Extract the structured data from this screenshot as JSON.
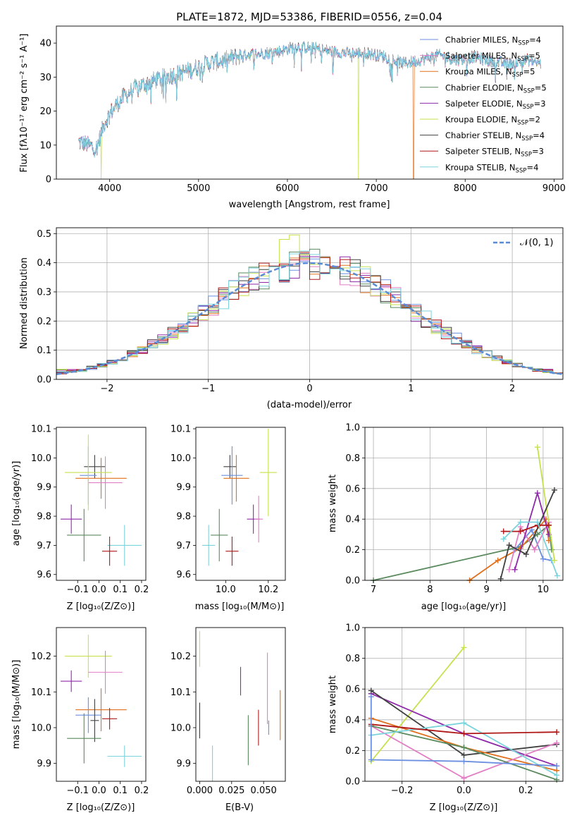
{
  "colors": {
    "Chabrier MILES": "#6a8fe0",
    "Salpeter MILES": "#e17fc4",
    "Kroupa MILES": "#e0701d",
    "Chabrier ELODIE": "#5a8a5e",
    "Salpeter ELODIE": "#8e2aa9",
    "Kroupa ELODIE": "#c5e24e",
    "Chabrier STELIB": "#404040",
    "Salpeter STELIB": "#b01818",
    "Kroupa STELIB": "#7bd3db",
    "normal": "#5b8bd6",
    "grid": "#b0b0b0"
  },
  "chart_data": [
    {
      "type": "line",
      "title": "PLATE=1872, MJD=53386, FIBERID=0556, z=0.04",
      "xlabel": "wavelength [Angstrom, rest frame]",
      "ylabel": "Flux [fλ10⁻¹⁷ erg cm⁻² s⁻¹ A⁻¹]",
      "xlim": [
        3400,
        9100
      ],
      "ylim": [
        0,
        45
      ],
      "xticks": [
        4000,
        5000,
        6000,
        7000,
        8000,
        9000
      ],
      "yticks": [
        0,
        10,
        20,
        30,
        40
      ],
      "grid": false,
      "legend": "top-right",
      "legend_entries": [
        {
          "label": "Chabrier MILES, N",
          "sub": "SSP",
          "tail": "=4",
          "color": "Chabrier MILES"
        },
        {
          "label": "Salpeter MILES, N",
          "sub": "SSP",
          "tail": "=5",
          "color": "Salpeter MILES"
        },
        {
          "label": "Kroupa MILES, N",
          "sub": "SSP",
          "tail": "=5",
          "color": "Kroupa MILES"
        },
        {
          "label": "Chabrier ELODIE, N",
          "sub": "SSP",
          "tail": "=5",
          "color": "Chabrier ELODIE"
        },
        {
          "label": "Salpeter ELODIE, N",
          "sub": "SSP",
          "tail": "=3",
          "color": "Salpeter ELODIE"
        },
        {
          "label": "Kroupa ELODIE, N",
          "sub": "SSP",
          "tail": "=2",
          "color": "Kroupa ELODIE"
        },
        {
          "label": "Chabrier STELIB, N",
          "sub": "SSP",
          "tail": "=4",
          "color": "Chabrier STELIB"
        },
        {
          "label": "Salpeter STELIB, N",
          "sub": "SSP",
          "tail": "=3",
          "color": "Salpeter STELIB"
        },
        {
          "label": "Kroupa STELIB, N",
          "sub": "SSP",
          "tail": "=4",
          "color": "Kroupa STELIB"
        }
      ],
      "continuum": {
        "x": [
          3650,
          3750,
          3850,
          3950,
          4050,
          4150,
          4300,
          4500,
          4700,
          4900,
          5100,
          5300,
          5500,
          5700,
          5900,
          6100,
          6300,
          6500,
          6700,
          6900,
          7100,
          7300,
          7500,
          7700,
          7900,
          8100,
          8300,
          8500,
          8700,
          8850
        ],
        "y": [
          11,
          10,
          9,
          17,
          21,
          24,
          27,
          29,
          30.5,
          32,
          34,
          35,
          36.5,
          37,
          37.5,
          39,
          38.5,
          37.5,
          37,
          37,
          36,
          34,
          35,
          36.5,
          35,
          36,
          34.5,
          34,
          35,
          34
        ]
      },
      "dropouts": [
        {
          "series": "Kroupa ELODIE",
          "x": 3905
        },
        {
          "series": "Kroupa ELODIE",
          "x": 6800
        },
        {
          "series": "Kroupa MILES",
          "x": 7420
        }
      ]
    },
    {
      "type": "histogram",
      "xlabel": "(data-model)/error",
      "ylabel": "Normed distribution",
      "xlim": [
        -2.5,
        2.5
      ],
      "ylim": [
        0,
        0.52
      ],
      "xticks": [
        -2,
        -1,
        0,
        1,
        2
      ],
      "yticks": [
        0,
        0.1,
        0.2,
        0.3,
        0.4,
        0.5
      ],
      "grid": true,
      "legend": "top-right",
      "normal_label": "𝒩(0, 1)",
      "bin_width": 0.1,
      "peak_bins": {
        "x": [
          -0.3,
          -0.2
        ],
        "y": [
          0.48,
          0.495
        ]
      }
    },
    {
      "type": "scatter",
      "xlabel": "Z [log₁₀(Z/Z⊙)]",
      "ylabel": "age  [log₁₀(age/yr)]",
      "xlim": [
        -0.2,
        0.22
      ],
      "ylim": [
        9.58,
        10.105
      ],
      "xticks": [
        -0.1,
        0.0,
        0.1,
        0.2
      ],
      "yticks": [
        9.6,
        9.7,
        9.8,
        9.9,
        10.0,
        10.1
      ],
      "points": [
        {
          "s": "Kroupa STELIB",
          "x": 0.12,
          "y": 9.7,
          "xe": 0.08,
          "ye": 0.07
        },
        {
          "s": "Salpeter STELIB",
          "x": 0.05,
          "y": 9.68,
          "xe": 0.035,
          "ye": 0.05
        },
        {
          "s": "Chabrier ELODIE",
          "x": -0.07,
          "y": 9.735,
          "xe": 0.08,
          "ye": 0.09
        },
        {
          "s": "Salpeter ELODIE",
          "x": -0.13,
          "y": 9.79,
          "xe": 0.05,
          "ye": 0.05
        },
        {
          "s": "Chabrier STELIB",
          "x": -0.02,
          "y": 9.97,
          "xe": 0.05,
          "ye": 0.04
        },
        {
          "s": "Chabrier MILES",
          "x": -0.05,
          "y": 9.94,
          "xe": 0.04,
          "ye": 0.1
        },
        {
          "s": "Kroupa MILES",
          "x": 0.01,
          "y": 9.93,
          "xe": 0.12,
          "ye": 0.07
        },
        {
          "s": "Salpeter MILES",
          "x": 0.03,
          "y": 9.915,
          "xe": 0.08,
          "ye": 0.09
        },
        {
          "s": "Kroupa ELODIE",
          "x": -0.05,
          "y": 9.95,
          "xe": 0.11,
          "ye": 0.13
        }
      ]
    },
    {
      "type": "scatter",
      "xlabel": "mass [log₁₀(M/M⊙)]",
      "ylabel": "",
      "xlim": [
        9.86,
        10.28
      ],
      "ylim": [
        9.58,
        10.105
      ],
      "xticks": [
        10.0,
        10.2
      ],
      "yticks": [
        9.6,
        9.7,
        9.8,
        9.9,
        10.0,
        10.1
      ],
      "points": [
        {
          "s": "Kroupa STELIB",
          "x": 9.92,
          "y": 9.7,
          "xe": 0.03,
          "ye": 0.07
        },
        {
          "s": "Salpeter STELIB",
          "x": 10.03,
          "y": 9.68,
          "xe": 0.03,
          "ye": 0.05
        },
        {
          "s": "Chabrier ELODIE",
          "x": 9.97,
          "y": 9.735,
          "xe": 0.04,
          "ye": 0.09
        },
        {
          "s": "Salpeter ELODIE",
          "x": 10.13,
          "y": 9.79,
          "xe": 0.03,
          "ye": 0.05
        },
        {
          "s": "Chabrier STELIB",
          "x": 10.02,
          "y": 9.97,
          "xe": 0.03,
          "ye": 0.04
        },
        {
          "s": "Chabrier MILES",
          "x": 10.03,
          "y": 9.94,
          "xe": 0.05,
          "ye": 0.1
        },
        {
          "s": "Kroupa MILES",
          "x": 10.05,
          "y": 9.93,
          "xe": 0.06,
          "ye": 0.08
        },
        {
          "s": "Salpeter MILES",
          "x": 10.155,
          "y": 9.79,
          "xe": 0.02,
          "ye": 0.08
        },
        {
          "s": "Kroupa ELODIE",
          "x": 10.2,
          "y": 9.95,
          "xe": 0.04,
          "ye": 0.15
        }
      ]
    },
    {
      "type": "line",
      "xlabel": "age  [log₁₀(age/yr)]",
      "ylabel": "mass weight",
      "xlim": [
        6.85,
        10.35
      ],
      "ylim": [
        0,
        1.0
      ],
      "xticks": [
        7,
        8,
        9,
        10
      ],
      "yticks": [
        0.0,
        0.2,
        0.4,
        0.6,
        0.8,
        1.0
      ],
      "grid": true,
      "series": [
        {
          "s": "Chabrier ELODIE",
          "x": [
            7.0,
            9.6,
            9.9,
            10.1,
            10.15
          ],
          "y": [
            0.0,
            0.22,
            0.3,
            0.36,
            0.2
          ]
        },
        {
          "s": "Kroupa MILES",
          "x": [
            8.7,
            9.2,
            9.6,
            10.05,
            10.1
          ],
          "y": [
            0.0,
            0.13,
            0.21,
            0.4,
            0.26
          ]
        },
        {
          "s": "Chabrier MILES",
          "x": [
            9.5,
            9.8,
            10.0,
            10.15
          ],
          "y": [
            0.2,
            0.33,
            0.14,
            0.13
          ]
        },
        {
          "s": "Salpeter MILES",
          "x": [
            9.4,
            9.6,
            9.85,
            10.1
          ],
          "y": [
            0.07,
            0.35,
            0.2,
            0.38
          ]
        },
        {
          "s": "Salpeter ELODIE",
          "x": [
            9.5,
            9.9,
            10.1
          ],
          "y": [
            0.07,
            0.57,
            0.3
          ]
        },
        {
          "s": "Kroupa ELODIE",
          "x": [
            9.9,
            10.2
          ],
          "y": [
            0.87,
            0.13
          ]
        },
        {
          "s": "Chabrier STELIB",
          "x": [
            9.25,
            9.4,
            9.7,
            10.2
          ],
          "y": [
            0.01,
            0.23,
            0.17,
            0.59
          ]
        },
        {
          "s": "Salpeter STELIB",
          "x": [
            9.3,
            9.6,
            9.9,
            10.1
          ],
          "y": [
            0.32,
            0.32,
            0.36,
            0.36
          ]
        },
        {
          "s": "Kroupa STELIB",
          "x": [
            9.3,
            9.6,
            9.9,
            10.25
          ],
          "y": [
            0.27,
            0.38,
            0.38,
            0.03
          ]
        }
      ]
    },
    {
      "type": "scatter",
      "xlabel": "Z [log₁₀(Z/Z⊙)]",
      "ylabel": "mass [log₁₀(M/M⊙)]",
      "xlim": [
        -0.2,
        0.22
      ],
      "ylim": [
        9.85,
        10.28
      ],
      "xticks": [
        -0.1,
        0.0,
        0.1,
        0.2
      ],
      "yticks": [
        9.9,
        10.0,
        10.1,
        10.2
      ],
      "points": [
        {
          "s": "Kroupa ELODIE",
          "x": -0.05,
          "y": 10.2,
          "xe": 0.11,
          "ye": 0.06
        },
        {
          "s": "Salpeter MILES",
          "x": 0.03,
          "y": 10.155,
          "xe": 0.08,
          "ye": 0.06
        },
        {
          "s": "Salpeter ELODIE",
          "x": -0.13,
          "y": 10.13,
          "xe": 0.05,
          "ye": 0.03
        },
        {
          "s": "Kroupa MILES",
          "x": 0.01,
          "y": 10.05,
          "xe": 0.12,
          "ye": 0.06
        },
        {
          "s": "Chabrier MILES",
          "x": -0.05,
          "y": 10.035,
          "xe": 0.06,
          "ye": 0.05
        },
        {
          "s": "Salpeter STELIB",
          "x": 0.05,
          "y": 10.025,
          "xe": 0.035,
          "ye": 0.03
        },
        {
          "s": "Chabrier STELIB",
          "x": -0.02,
          "y": 10.02,
          "xe": 0.02,
          "ye": 0.06
        },
        {
          "s": "Chabrier ELODIE",
          "x": -0.07,
          "y": 9.97,
          "xe": 0.08,
          "ye": 0.07
        },
        {
          "s": "Kroupa STELIB",
          "x": 0.12,
          "y": 9.92,
          "xe": 0.08,
          "ye": 0.03
        }
      ]
    },
    {
      "type": "scatter",
      "xlabel": "E(B-V)",
      "ylabel": "",
      "xlim": [
        -0.003,
        0.067
      ],
      "ylim": [
        9.85,
        10.28
      ],
      "xticks": [
        0.0,
        0.025,
        0.05
      ],
      "yticks": [
        9.9,
        10.0,
        10.1,
        10.2
      ],
      "points": [
        {
          "s": "Kroupa ELODIE",
          "x": 0.0,
          "y": 10.22,
          "xe": 0,
          "ye": 0.05
        },
        {
          "s": "Chabrier STELIB",
          "x": 0.0,
          "y": 10.02,
          "xe": 0,
          "ye": 0.05
        },
        {
          "s": "Kroupa STELIB",
          "x": 0.01,
          "y": 9.9,
          "xe": 0,
          "ye": 0.05
        },
        {
          "s": "Salpeter ELODIE",
          "x": 0.032,
          "y": 10.13,
          "xe": 0,
          "ye": 0.04
        },
        {
          "s": "Chabrier ELODIE",
          "x": 0.038,
          "y": 9.965,
          "xe": 0,
          "ye": 0.07
        },
        {
          "s": "Salpeter STELIB",
          "x": 0.046,
          "y": 10.0,
          "xe": 0,
          "ye": 0.05
        },
        {
          "s": "Salpeter MILES",
          "x": 0.053,
          "y": 10.11,
          "xe": 0,
          "ye": 0.1
        },
        {
          "s": "Chabrier MILES",
          "x": 0.054,
          "y": 10.0,
          "xe": 0,
          "ye": 0.02
        },
        {
          "s": "Kroupa MILES",
          "x": 0.063,
          "y": 10.035,
          "xe": 0,
          "ye": 0.07
        }
      ]
    },
    {
      "type": "line",
      "xlabel": "Z [log₁₀(Z/Z⊙)]",
      "ylabel": "mass weight",
      "xlim": [
        -0.32,
        0.32
      ],
      "ylim": [
        0,
        1.0
      ],
      "xticks": [
        -0.2,
        0.0,
        0.2
      ],
      "yticks": [
        0.0,
        0.2,
        0.4,
        0.6,
        0.8,
        1.0
      ],
      "grid": true,
      "series": [
        {
          "s": "Kroupa ELODIE",
          "x": [
            -0.3,
            0.0
          ],
          "y": [
            0.13,
            0.87
          ]
        },
        {
          "s": "Salpeter ELODIE",
          "x": [
            -0.3,
            0.0,
            0.3
          ],
          "y": [
            0.57,
            0.31,
            0.1
          ]
        },
        {
          "s": "Chabrier STELIB",
          "x": [
            -0.3,
            0.0,
            0.3
          ],
          "y": [
            0.59,
            0.17,
            0.24
          ]
        },
        {
          "s": "Kroupa MILES",
          "x": [
            -0.3,
            0.0,
            0.3
          ],
          "y": [
            0.41,
            0.22,
            0.07
          ]
        },
        {
          "s": "Salpeter MILES",
          "x": [
            -0.3,
            0.0,
            0.3
          ],
          "y": [
            0.36,
            0.02,
            0.25
          ]
        },
        {
          "s": "Chabrier ELODIE",
          "x": [
            -0.3,
            0.0,
            0.3
          ],
          "y": [
            0.36,
            0.22,
            0.01
          ]
        },
        {
          "s": "Kroupa STELIB",
          "x": [
            -0.3,
            0.0,
            0.3
          ],
          "y": [
            0.3,
            0.38,
            0.04
          ]
        },
        {
          "s": "Salpeter STELIB",
          "x": [
            -0.3,
            0.0,
            0.3
          ],
          "y": [
            0.37,
            0.31,
            0.32
          ]
        },
        {
          "s": "Chabrier MILES",
          "x": [
            -0.3,
            -0.3,
            0.0,
            0.3
          ],
          "y": [
            0.55,
            0.14,
            0.13,
            0.1
          ]
        }
      ]
    }
  ]
}
